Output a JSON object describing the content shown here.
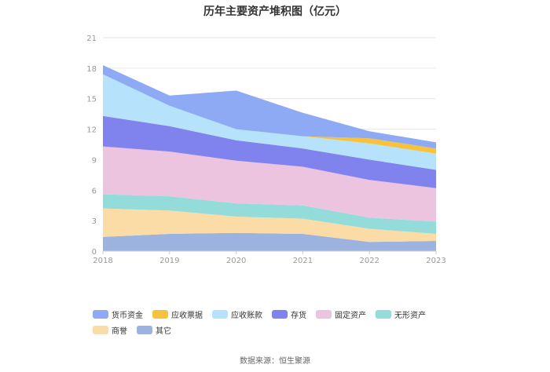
{
  "chart_data": {
    "type": "area",
    "stacked": true,
    "title": "历年主要资产堆积图（亿元）",
    "x": [
      "2018",
      "2019",
      "2020",
      "2021",
      "2022",
      "2023"
    ],
    "yticks": [
      "0",
      "3",
      "6",
      "9",
      "12",
      "15",
      "18",
      "21"
    ],
    "ylim": [
      0,
      21
    ],
    "grid": true,
    "legend_position": "bottom",
    "series": [
      {
        "name": "货币资金",
        "color": "#8faaf5",
        "values": [
          0.9,
          1.0,
          3.8,
          2.3,
          0.7,
          0.6
        ]
      },
      {
        "name": "应收票据",
        "color": "#f7c23c",
        "values": [
          0.0,
          0.0,
          0.0,
          0.0,
          0.5,
          0.5
        ]
      },
      {
        "name": "应收账款",
        "color": "#b6e3fb",
        "values": [
          4.1,
          2.0,
          1.1,
          1.2,
          1.6,
          1.6
        ]
      },
      {
        "name": "存货",
        "color": "#8082ee",
        "values": [
          3.0,
          2.5,
          2.0,
          1.8,
          2.0,
          1.8
        ]
      },
      {
        "name": "固定资产",
        "color": "#ecc4df",
        "values": [
          4.7,
          4.4,
          4.2,
          3.8,
          3.7,
          3.3
        ]
      },
      {
        "name": "无形资产",
        "color": "#93dcd9",
        "values": [
          1.4,
          1.4,
          1.3,
          1.3,
          1.1,
          1.2
        ]
      },
      {
        "name": "商誉",
        "color": "#fbdca6",
        "values": [
          2.8,
          2.3,
          1.6,
          1.5,
          1.3,
          0.7
        ]
      },
      {
        "name": "其它",
        "color": "#9cb3df",
        "values": [
          1.4,
          1.7,
          1.8,
          1.7,
          0.9,
          1.0
        ]
      }
    ]
  },
  "source": "数据来源：恒生聚源"
}
